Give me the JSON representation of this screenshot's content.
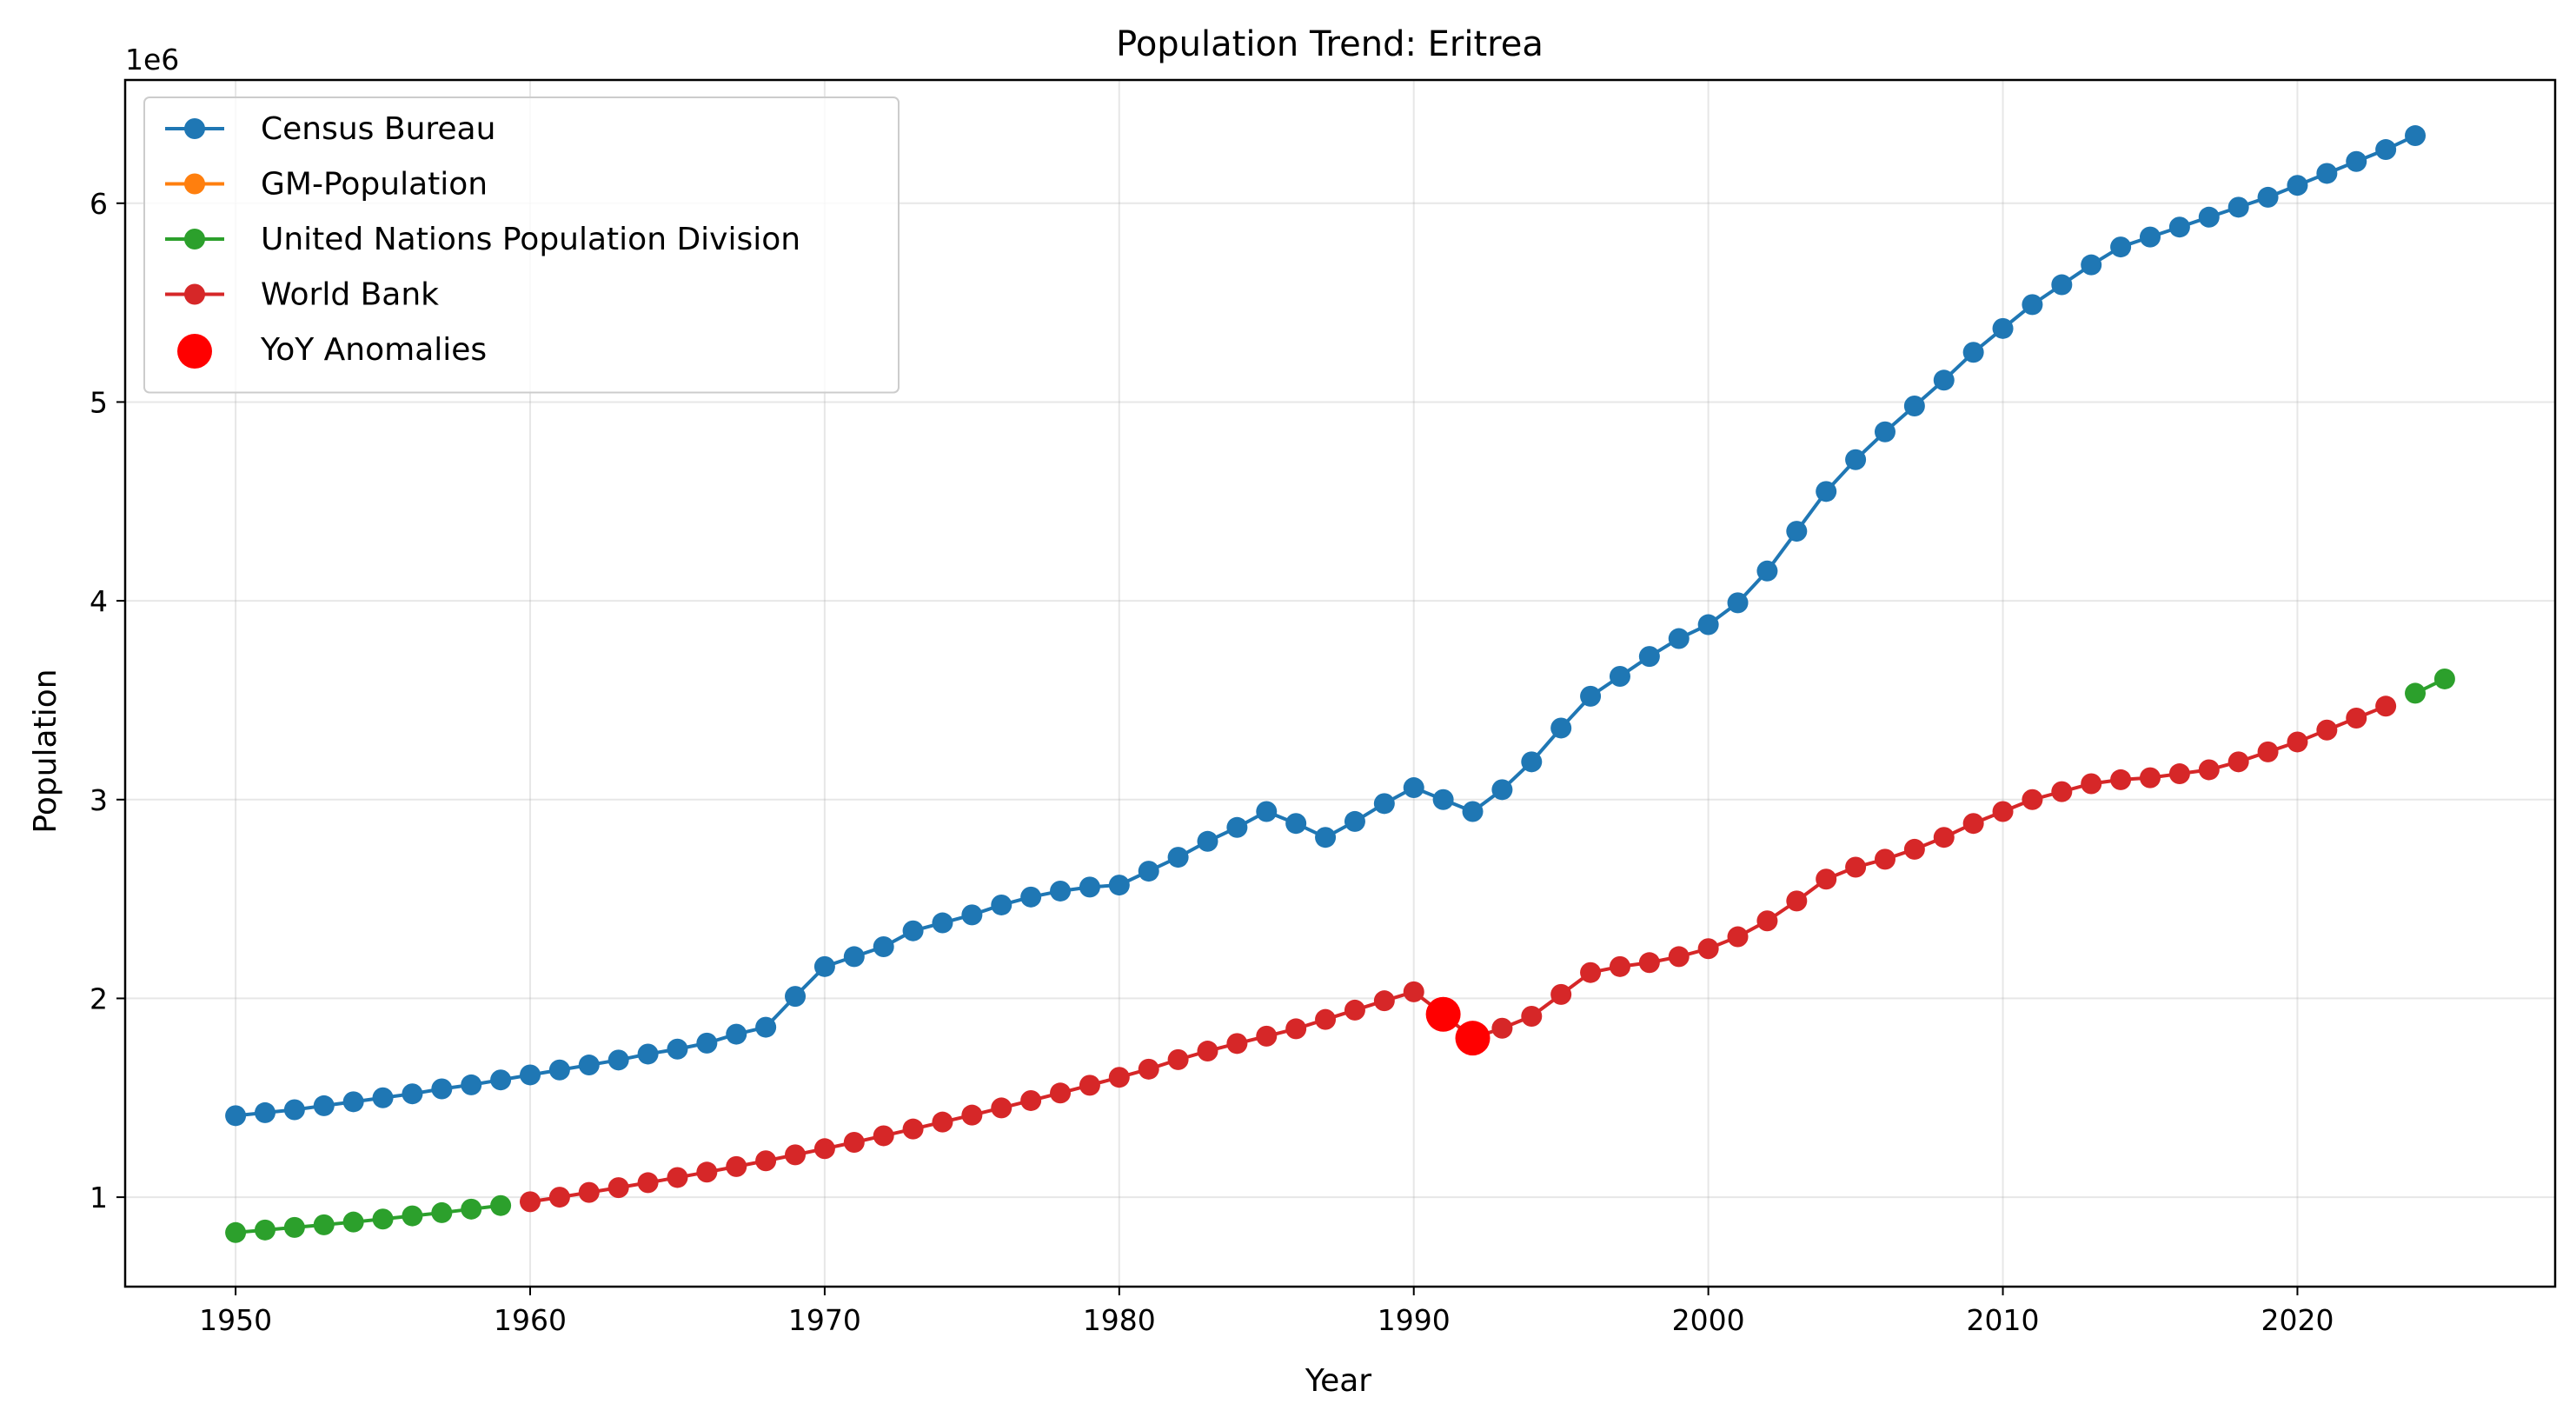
{
  "chart_data": {
    "type": "line",
    "title": "Population Trend: Eritrea",
    "xlabel": "Year",
    "ylabel": "Population",
    "y_offset_label": "1e6",
    "xlim": [
      1946.25,
      2028.75
    ],
    "ylim": [
      550000,
      6620000
    ],
    "x_ticks": [
      1950,
      1960,
      1970,
      1980,
      1990,
      2000,
      2010,
      2020
    ],
    "y_ticks": [
      1000000,
      2000000,
      3000000,
      4000000,
      5000000,
      6000000
    ],
    "y_tick_labels": [
      "1",
      "2",
      "3",
      "4",
      "5",
      "6"
    ],
    "grid": true,
    "legend_position": "upper-left",
    "series": [
      {
        "name": "Census Bureau",
        "color": "#1f77b4",
        "marker": "circle",
        "line": true,
        "x": [
          1950,
          1951,
          1952,
          1953,
          1954,
          1955,
          1956,
          1957,
          1958,
          1959,
          1960,
          1961,
          1962,
          1963,
          1964,
          1965,
          1966,
          1967,
          1968,
          1969,
          1970,
          1971,
          1972,
          1973,
          1974,
          1975,
          1976,
          1977,
          1978,
          1979,
          1980,
          1981,
          1982,
          1983,
          1984,
          1985,
          1986,
          1987,
          1988,
          1989,
          1990,
          1991,
          1992,
          1993,
          1994,
          1995,
          1996,
          1997,
          1998,
          1999,
          2000,
          2001,
          2002,
          2003,
          2004,
          2005,
          2006,
          2007,
          2008,
          2009,
          2010,
          2011,
          2012,
          2013,
          2014,
          2015,
          2016,
          2017,
          2018,
          2019,
          2020,
          2021,
          2022,
          2023,
          2024
        ],
        "y": [
          1410000,
          1425000,
          1440000,
          1460000,
          1480000,
          1500000,
          1520000,
          1545000,
          1565000,
          1590000,
          1615000,
          1640000,
          1665000,
          1690000,
          1720000,
          1745000,
          1775000,
          1820000,
          1855000,
          2010000,
          2160000,
          2210000,
          2260000,
          2340000,
          2380000,
          2420000,
          2470000,
          2510000,
          2540000,
          2560000,
          2570000,
          2640000,
          2710000,
          2790000,
          2860000,
          2940000,
          2880000,
          2810000,
          2890000,
          2980000,
          3060000,
          3000000,
          2940000,
          3050000,
          3190000,
          3360000,
          3520000,
          3620000,
          3720000,
          3810000,
          3880000,
          3990000,
          4150000,
          4350000,
          4550000,
          4710000,
          4850000,
          4980000,
          5110000,
          5250000,
          5370000,
          5490000,
          5590000,
          5690000,
          5780000,
          5830000,
          5880000,
          5930000,
          5980000,
          6030000,
          6090000,
          6150000,
          6210000,
          6270000,
          6340000
        ]
      },
      {
        "name": "GM-Population",
        "color": "#ff7f0e",
        "marker": "circle",
        "line": true,
        "x": [],
        "y": []
      },
      {
        "name": "United Nations Population Division",
        "color": "#2ca02c",
        "marker": "circle",
        "line": true,
        "x": [
          1950,
          1951,
          1952,
          1953,
          1954,
          1955,
          1956,
          1957,
          1958,
          1959,
          2024,
          2025
        ],
        "y": [
          822000,
          835000,
          848000,
          861000,
          875000,
          890000,
          906000,
          922000,
          940000,
          958000,
          3535000,
          3607000
        ]
      },
      {
        "name": "World Bank",
        "color": "#d62728",
        "marker": "circle",
        "line": true,
        "x": [
          1960,
          1961,
          1962,
          1963,
          1964,
          1965,
          1966,
          1967,
          1968,
          1969,
          1970,
          1971,
          1972,
          1973,
          1974,
          1975,
          1976,
          1977,
          1978,
          1979,
          1980,
          1981,
          1982,
          1983,
          1984,
          1985,
          1986,
          1987,
          1988,
          1989,
          1990,
          1991,
          1992,
          1993,
          1994,
          1995,
          1996,
          1997,
          1998,
          1999,
          2000,
          2001,
          2002,
          2003,
          2004,
          2005,
          2006,
          2007,
          2008,
          2009,
          2010,
          2011,
          2012,
          2013,
          2014,
          2015,
          2016,
          2017,
          2018,
          2019,
          2020,
          2021,
          2022,
          2023
        ],
        "y": [
          977000,
          1000000,
          1024000,
          1048000,
          1073000,
          1099000,
          1126000,
          1154000,
          1183000,
          1213000,
          1244000,
          1276000,
          1309000,
          1343000,
          1378000,
          1413000,
          1449000,
          1486000,
          1524000,
          1563000,
          1603000,
          1644000,
          1692000,
          1735000,
          1773000,
          1810000,
          1847000,
          1894000,
          1941000,
          1988000,
          2033000,
          1920000,
          1800000,
          1850000,
          1910000,
          2020000,
          2130000,
          2160000,
          2180000,
          2210000,
          2250000,
          2310000,
          2390000,
          2490000,
          2600000,
          2660000,
          2700000,
          2750000,
          2810000,
          2880000,
          2940000,
          3000000,
          3040000,
          3080000,
          3100000,
          3110000,
          3130000,
          3150000,
          3190000,
          3240000,
          3290000,
          3350000,
          3410000,
          3470000
        ]
      },
      {
        "name": "YoY Anomalies",
        "color": "#ff0000",
        "marker": "circle-large",
        "line": false,
        "x": [
          1991,
          1992
        ],
        "y": [
          1920000,
          1800000
        ]
      }
    ]
  }
}
